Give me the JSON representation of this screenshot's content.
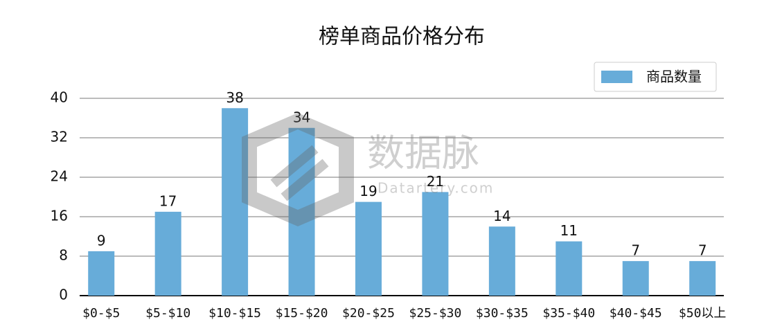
{
  "chart_data": {
    "type": "bar",
    "title": "榜单商品价格分布",
    "categories": [
      "$0-$5",
      "$5-$10",
      "$10-$15",
      "$15-$20",
      "$20-$25",
      "$25-$30",
      "$30-$35",
      "$35-$40",
      "$40-$45",
      "$50以上"
    ],
    "series": [
      {
        "name": "商品数量",
        "color": "#67acd9",
        "values": [
          9,
          17,
          38,
          34,
          19,
          21,
          14,
          11,
          7,
          7
        ]
      }
    ],
    "ylim": [
      0,
      40
    ],
    "yticks": [
      0,
      8,
      16,
      24,
      32,
      40
    ],
    "grid": true,
    "legend": "upper right"
  },
  "watermark": {
    "name": "数据脉",
    "site": "Datartery.com"
  }
}
